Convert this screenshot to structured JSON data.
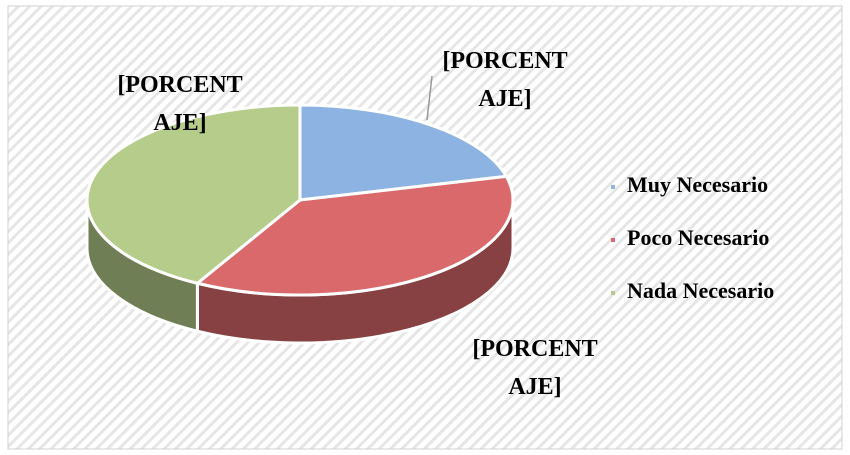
{
  "chart_data": {
    "type": "pie3d",
    "categories": [
      "Muy Necesario",
      "Poco Necesario",
      "Nada Necesario"
    ],
    "values": [
      21,
      37,
      42
    ],
    "value_labels": [
      "[PORCENTAJE]",
      "[PORCENTAJE]",
      "[PORCENTAJE]"
    ],
    "colors": [
      "#8db3e2",
      "#d9696a",
      "#b5cc8a"
    ],
    "legend": "right"
  }
}
